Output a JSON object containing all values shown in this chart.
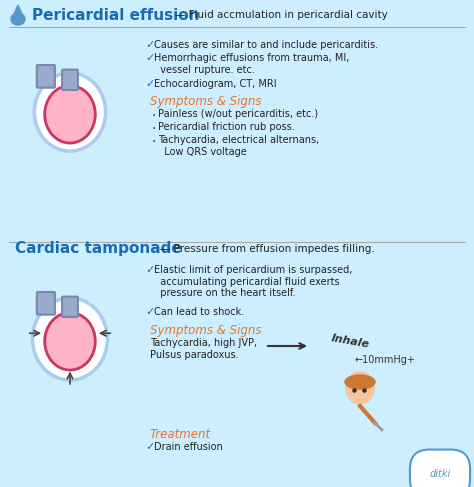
{
  "bg_color": "#cceeff",
  "title1": "Pericardial effusion",
  "title1_color": "#1a6bb5",
  "subtitle1": "— Fluid accmulation in pericardial cavity",
  "subtitle1_color": "#222222",
  "title2": "Cardiac tamponade",
  "title2_color": "#1a6bb5",
  "subtitle2": "— Pressure from effusion impedes filling.",
  "subtitle2_color": "#222222",
  "check_color": "#1a6bb5",
  "symptom_color": "#e8732a",
  "bullet_color": "#333333",
  "text_color": "#222222",
  "section1_checks": [
    "Causes are similar to and include pericarditis.",
    "Hemorrhagic effusions from trauma, MI,\n  vessel rupture. etc.",
    "Echocardiogram, CT, MRI"
  ],
  "section1_symptoms_title": "Symptoms & Signs",
  "section1_symptoms": [
    "Painless (w/out pericarditis, etc.)",
    "Pericardial friction rub poss.",
    "Tachycardia, electrical alternans,\n  Low QRS voltage"
  ],
  "section2_checks": [
    "Elastic limit of pericardium is surpassed,\n  accumulating pericardial fluid exerts\n  pressure on the heart itself.",
    "Can lead to shock."
  ],
  "section2_symptoms_title": "Symptoms & Signs",
  "section2_symptoms": [
    "Tachycardia, high JVP,\nPulsus paradoxus."
  ],
  "section2_treatment_title": "Treatment",
  "section2_treatment": [
    "Drain effusion"
  ],
  "inhale_text": "Inhale",
  "arrow_text": "←10mmHg+",
  "watermark": "ditki"
}
